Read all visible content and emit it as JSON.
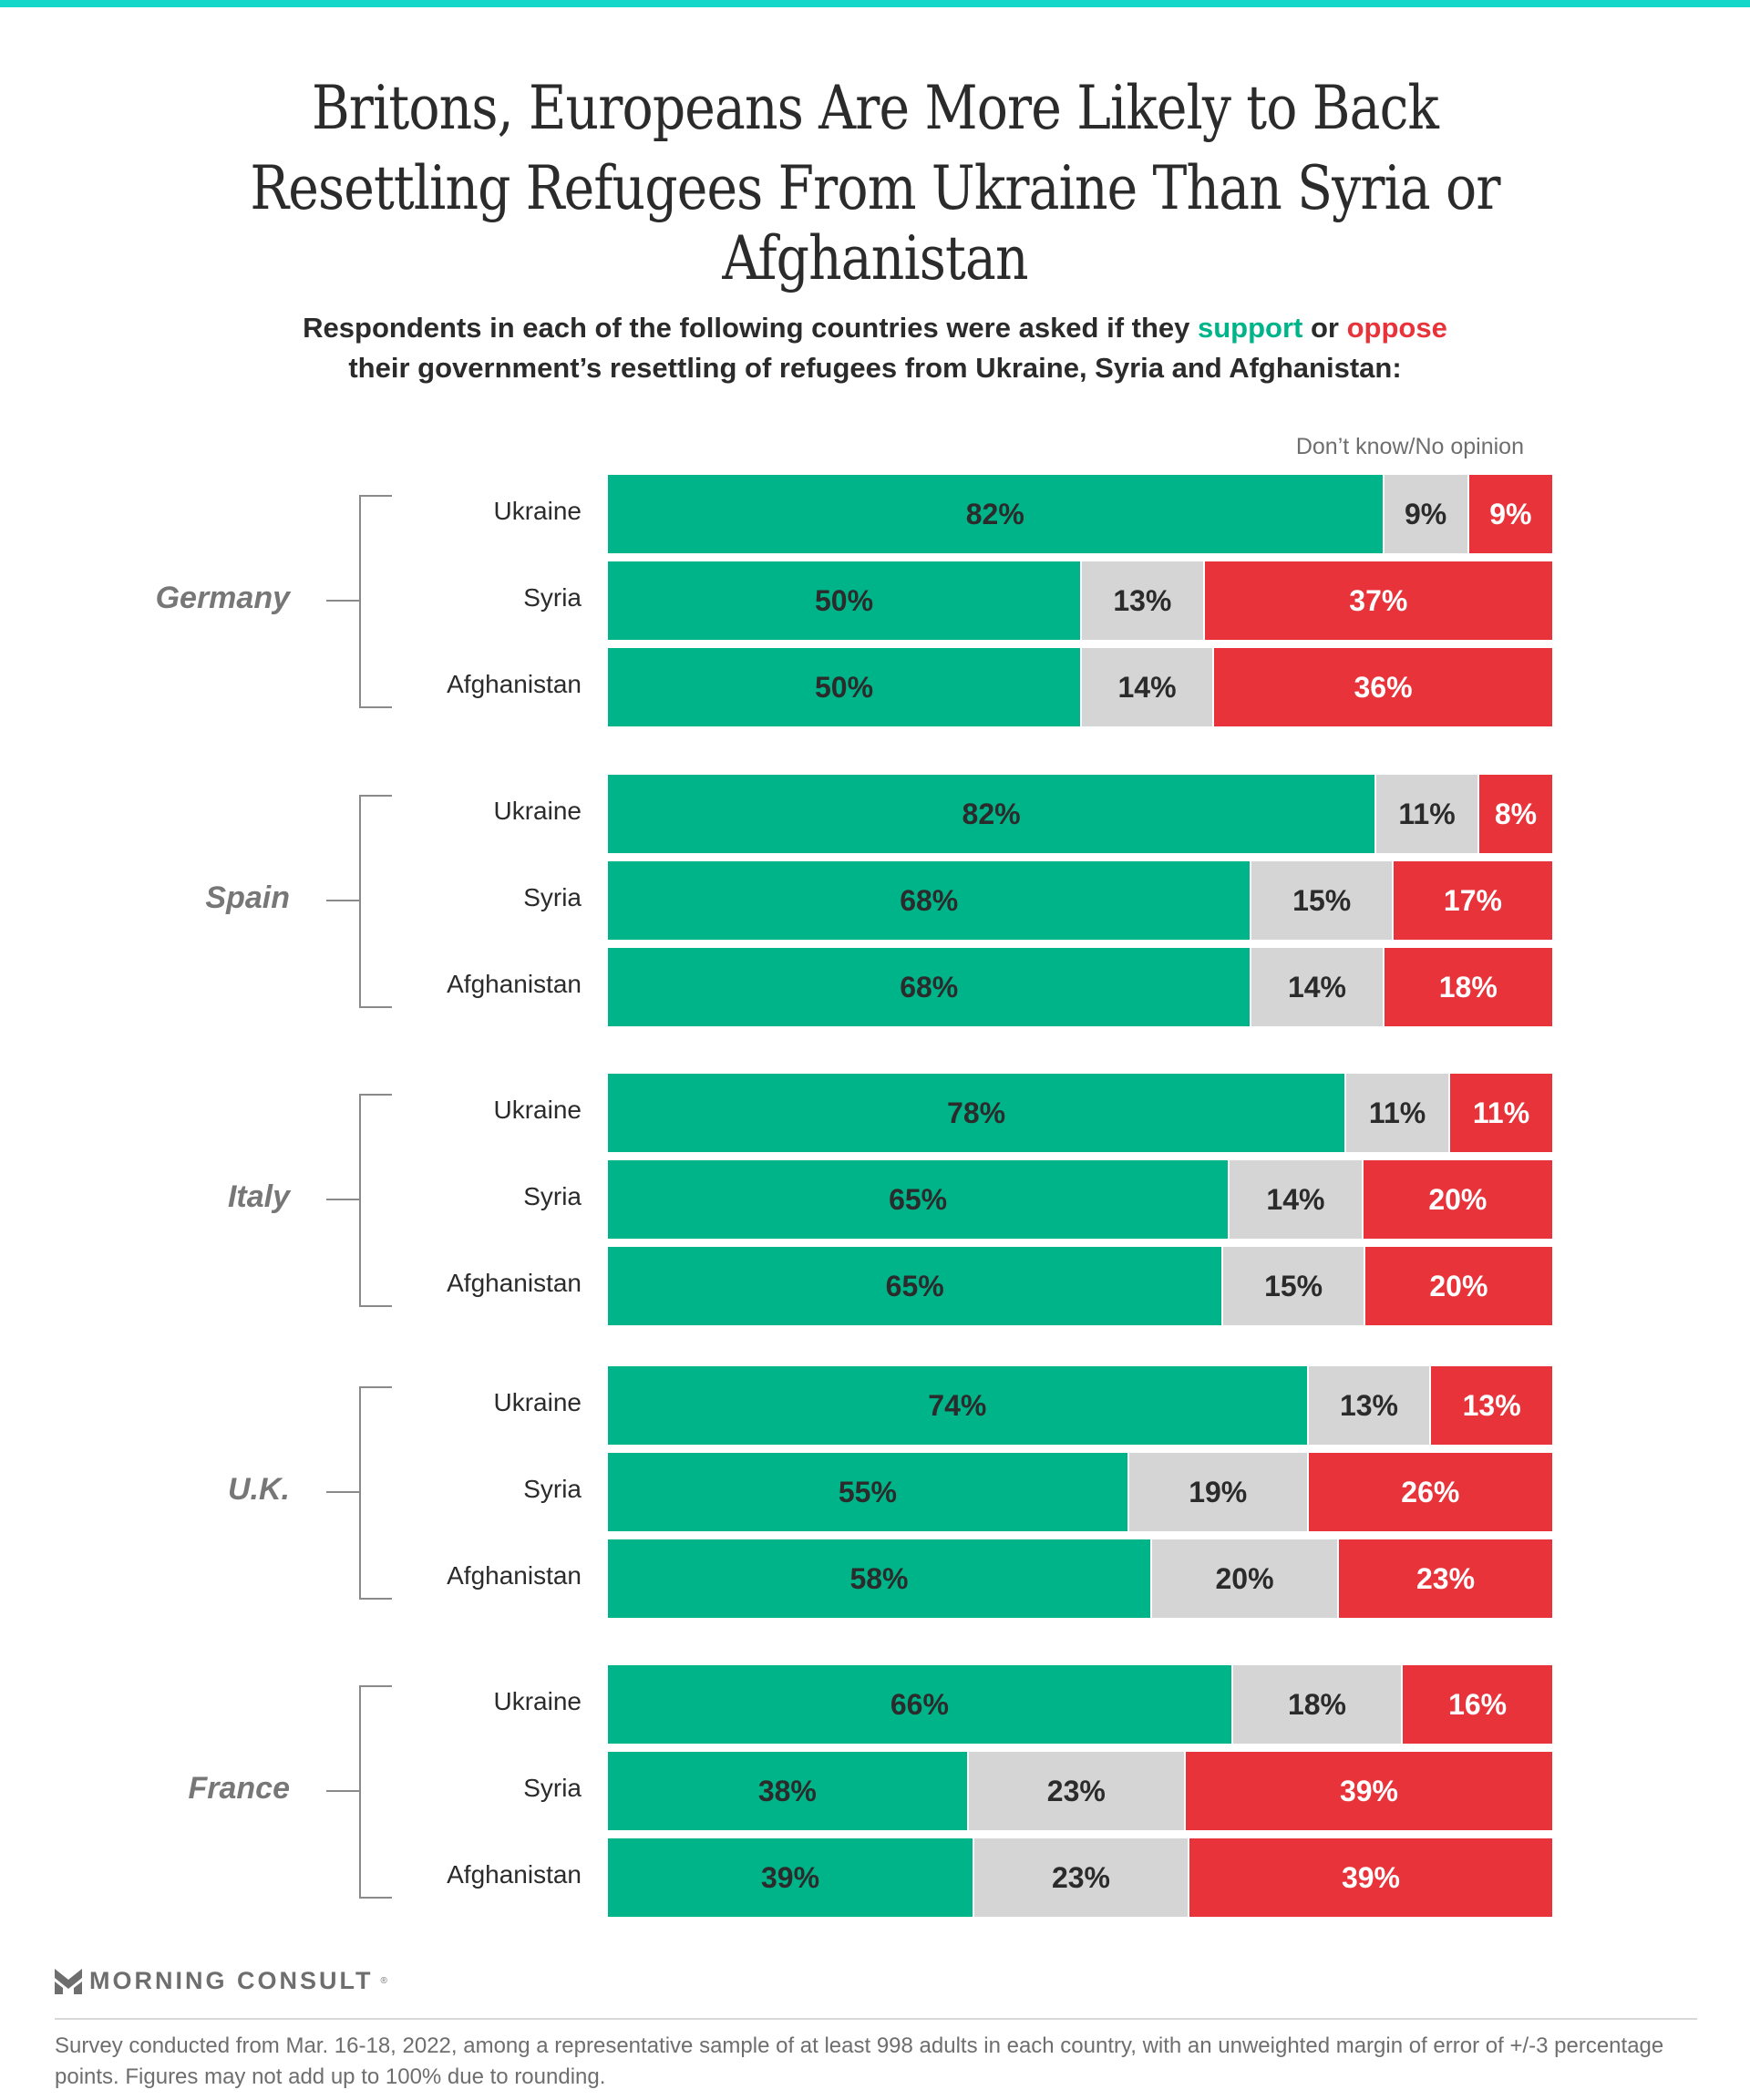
{
  "header": {
    "title_line1": "Britons, Europeans Are More Likely to Back",
    "title_line2": "Resettling Refugees From Ukraine Than Syria or Afghanistan",
    "subtitle_line1_pre": "Respondents in each of the following countries were asked if they ",
    "subtitle_support": "support",
    "subtitle_or": " or ",
    "subtitle_oppose": "oppose",
    "subtitle_line2": "their government’s resettling of refugees from Ukraine, Syria and Afghanistan:"
  },
  "colors": {
    "accent_bar": "#14d6c9",
    "support": "#00b48a",
    "dont_know": "#d5d5d5",
    "oppose": "#e8333a"
  },
  "chart_data": {
    "type": "bar",
    "orientation": "horizontal-stacked",
    "title": "Britons, Europeans Are More Likely to Back Resettling Refugees From Ukraine Than Syria or Afghanistan",
    "legend": [
      "Support",
      "Don’t know/No opinion",
      "Oppose"
    ],
    "dont_know_label": "Don’t know/No opinion",
    "xlim": [
      0,
      100
    ],
    "groups": [
      {
        "country": "Germany",
        "rows": [
          {
            "label": "Ukraine",
            "support": 82,
            "dont_know": 9,
            "oppose": 9
          },
          {
            "label": "Syria",
            "support": 50,
            "dont_know": 13,
            "oppose": 37
          },
          {
            "label": "Afghanistan",
            "support": 50,
            "dont_know": 14,
            "oppose": 36
          }
        ]
      },
      {
        "country": "Spain",
        "rows": [
          {
            "label": "Ukraine",
            "support": 82,
            "dont_know": 11,
            "oppose": 8
          },
          {
            "label": "Syria",
            "support": 68,
            "dont_know": 15,
            "oppose": 17
          },
          {
            "label": "Afghanistan",
            "support": 68,
            "dont_know": 14,
            "oppose": 18
          }
        ]
      },
      {
        "country": "Italy",
        "rows": [
          {
            "label": "Ukraine",
            "support": 78,
            "dont_know": 11,
            "oppose": 11
          },
          {
            "label": "Syria",
            "support": 65,
            "dont_know": 14,
            "oppose": 20
          },
          {
            "label": "Afghanistan",
            "support": 65,
            "dont_know": 15,
            "oppose": 20
          }
        ]
      },
      {
        "country": "U.K.",
        "rows": [
          {
            "label": "Ukraine",
            "support": 74,
            "dont_know": 13,
            "oppose": 13
          },
          {
            "label": "Syria",
            "support": 55,
            "dont_know": 19,
            "oppose": 26
          },
          {
            "label": "Afghanistan",
            "support": 58,
            "dont_know": 20,
            "oppose": 23
          }
        ]
      },
      {
        "country": "France",
        "rows": [
          {
            "label": "Ukraine",
            "support": 66,
            "dont_know": 18,
            "oppose": 16
          },
          {
            "label": "Syria",
            "support": 38,
            "dont_know": 23,
            "oppose": 39
          },
          {
            "label": "Afghanistan",
            "support": 39,
            "dont_know": 23,
            "oppose": 39
          }
        ]
      }
    ]
  },
  "footer": {
    "logo_text": "MORNING CONSULT",
    "logo_reg": "®",
    "note": "Survey conducted from Mar. 16-18, 2022, among a representative sample of at least 998 adults in each country, with an unweighted margin of error of +/-3 percentage points. Figures may not add up to 100% due to rounding."
  }
}
